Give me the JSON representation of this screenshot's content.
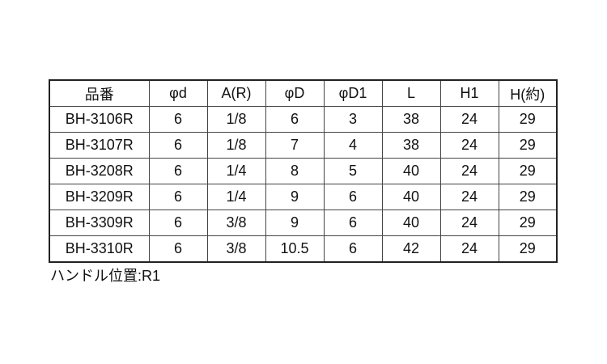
{
  "table": {
    "headers": [
      "品番",
      "φd",
      "A(R)",
      "φD",
      "φD1",
      "L",
      "H1",
      "H(約)"
    ],
    "rows": [
      [
        "BH-3106R",
        "6",
        "1/8",
        "6",
        "3",
        "38",
        "24",
        "29"
      ],
      [
        "BH-3107R",
        "6",
        "1/8",
        "7",
        "4",
        "38",
        "24",
        "29"
      ],
      [
        "BH-3208R",
        "6",
        "1/4",
        "8",
        "5",
        "40",
        "24",
        "29"
      ],
      [
        "BH-3209R",
        "6",
        "1/4",
        "9",
        "6",
        "40",
        "24",
        "29"
      ],
      [
        "BH-3309R",
        "6",
        "3/8",
        "9",
        "6",
        "40",
        "24",
        "29"
      ],
      [
        "BH-3310R",
        "6",
        "3/8",
        "10.5",
        "6",
        "42",
        "24",
        "29"
      ]
    ]
  },
  "note": "ハンドル位置:R1"
}
